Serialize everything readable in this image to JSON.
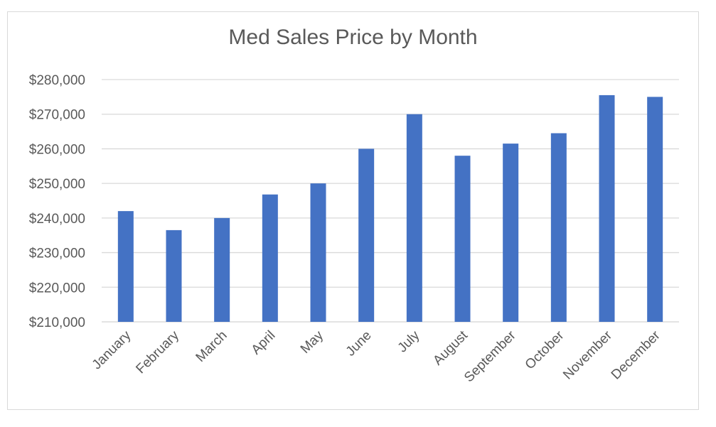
{
  "chart_data": {
    "type": "bar",
    "title": "Med Sales Price by Month",
    "xlabel": "",
    "ylabel": "",
    "categories": [
      "January",
      "February",
      "March",
      "April",
      "May",
      "June",
      "July",
      "August",
      "September",
      "October",
      "November",
      "December"
    ],
    "values": [
      242000,
      236500,
      240000,
      246800,
      250000,
      260000,
      270000,
      258000,
      261500,
      264500,
      275500,
      275000
    ],
    "ylim": [
      210000,
      280000
    ],
    "yticks": [
      210000,
      220000,
      230000,
      240000,
      250000,
      260000,
      270000,
      280000
    ],
    "ytick_labels": [
      "$210,000",
      "$220,000",
      "$230,000",
      "$240,000",
      "$250,000",
      "$260,000",
      "$270,000",
      "$280,000"
    ],
    "grid": true,
    "legend": "none",
    "colors": {
      "bar": "#4472c4",
      "grid": "#d9d9d9",
      "text": "#595959"
    }
  }
}
